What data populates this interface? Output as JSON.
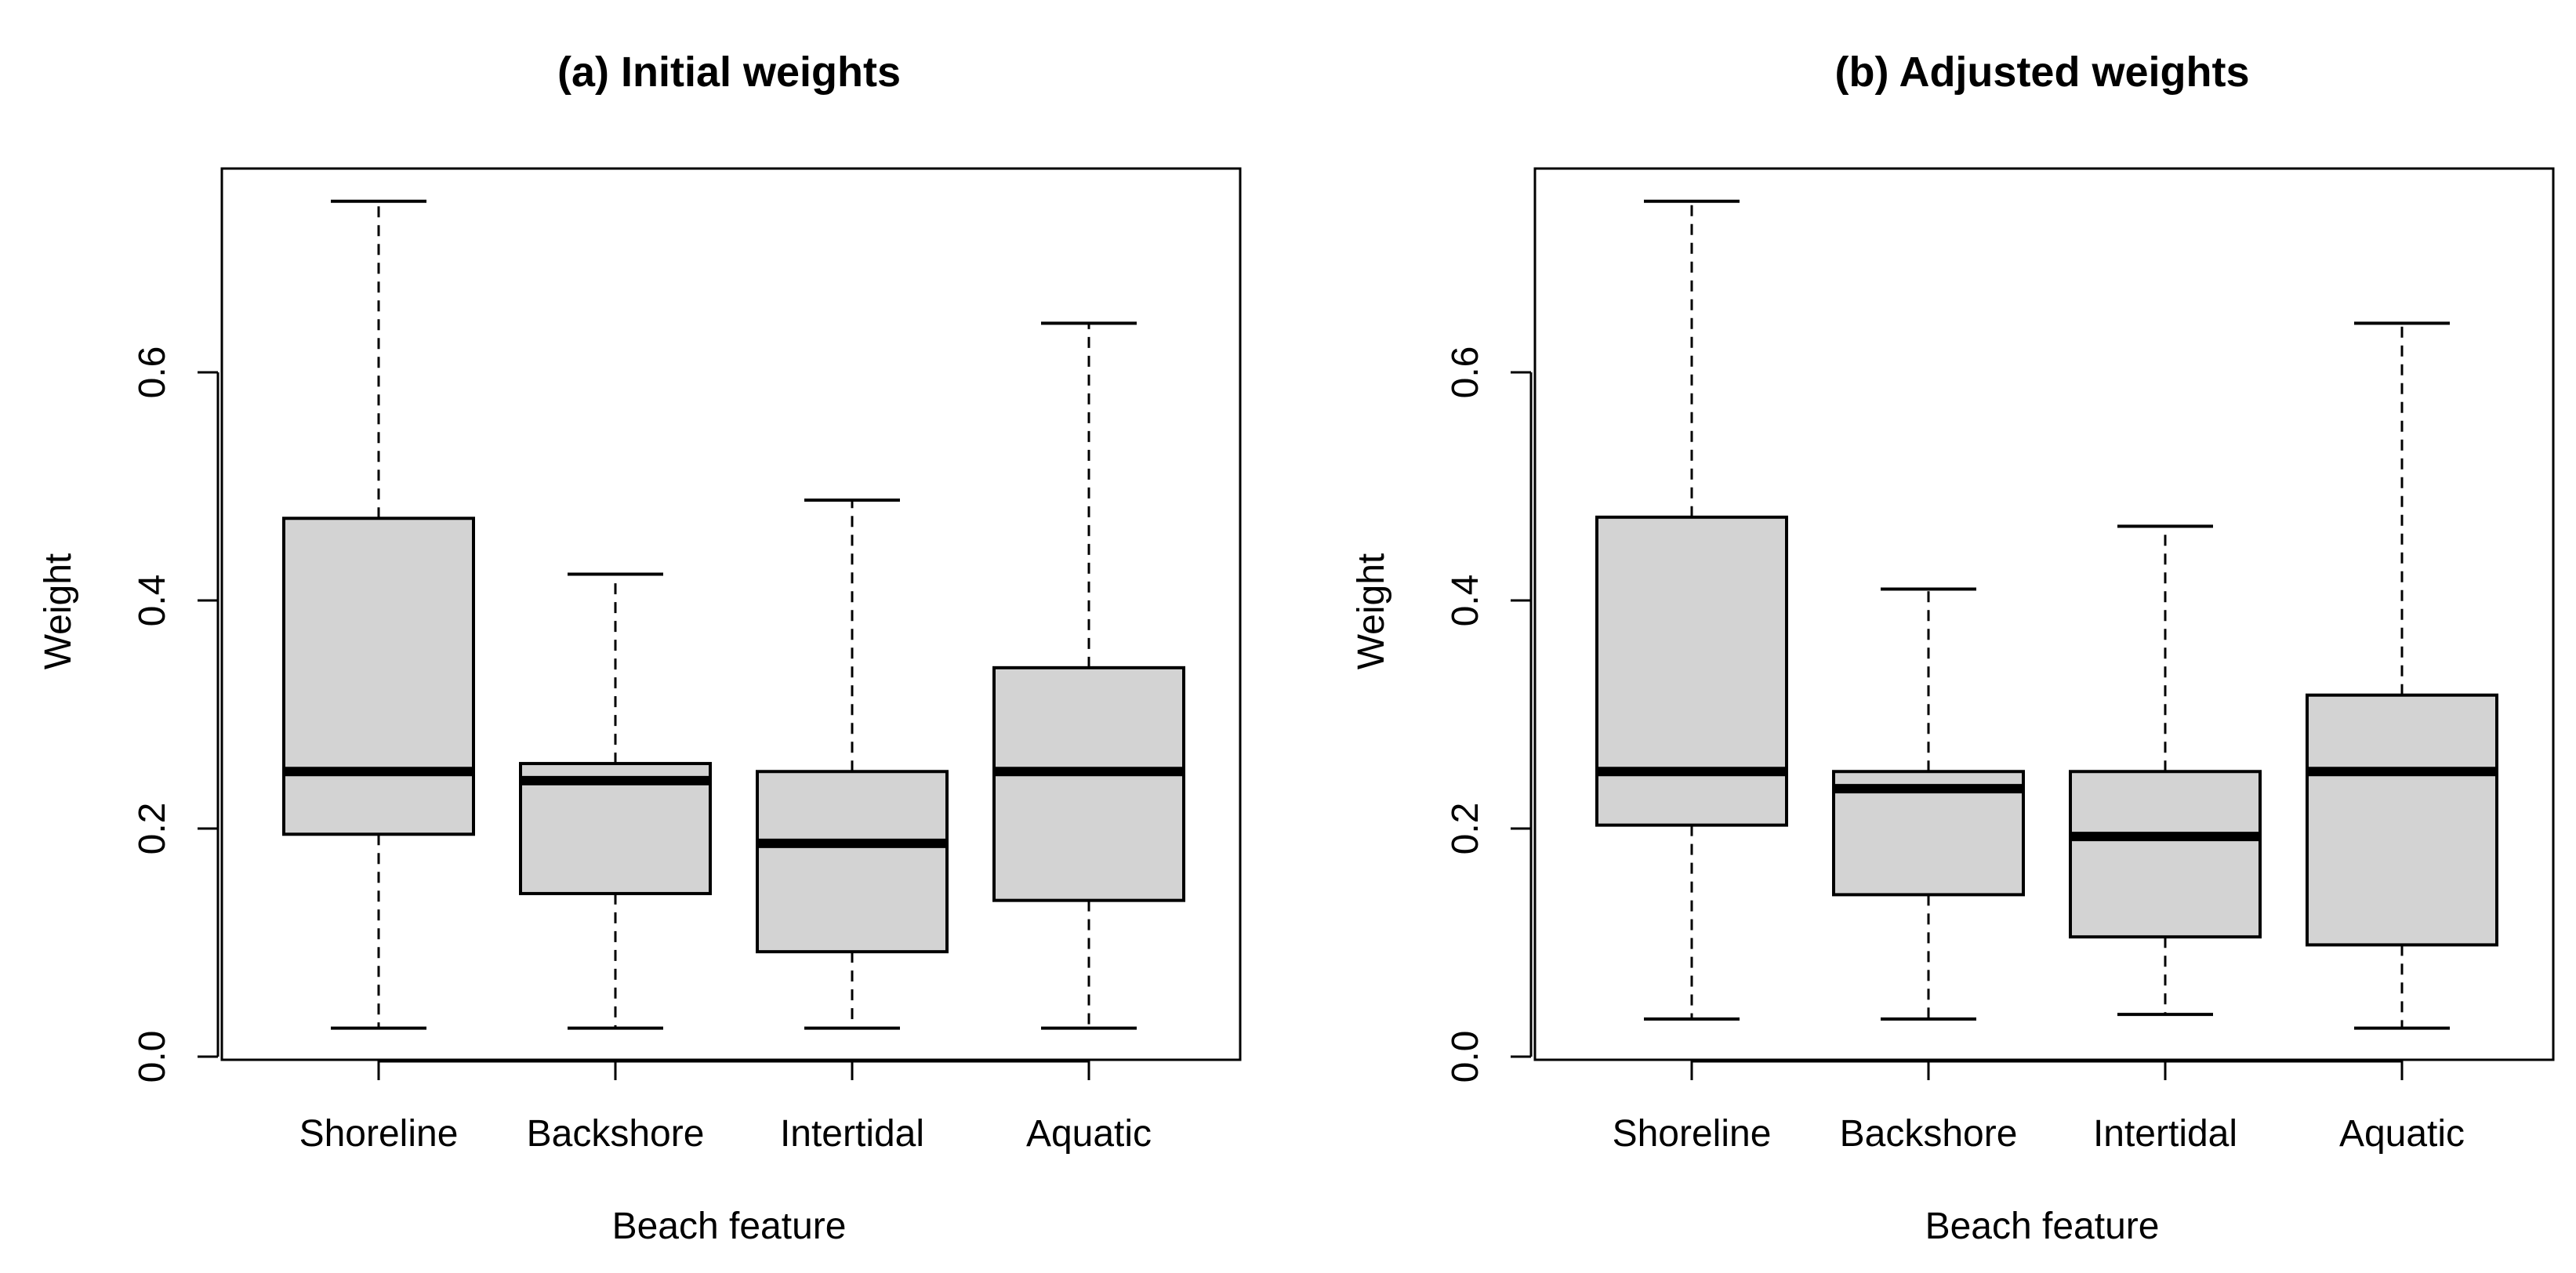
{
  "chart_data": [
    {
      "type": "boxplot",
      "title": "(a) Initial weights",
      "xlabel": "Beach feature",
      "ylabel": "Weight",
      "ylim": [
        0,
        0.78
      ],
      "yticks": [
        0.0,
        0.2,
        0.4,
        0.6
      ],
      "ytick_labels": [
        "0.0",
        "0.2",
        "0.4",
        "0.6"
      ],
      "categories": [
        "Shoreline",
        "Backshore",
        "Intertidal",
        "Aquatic"
      ],
      "boxes": [
        {
          "whisker_low": 0.025,
          "q1": 0.195,
          "median": 0.25,
          "q3": 0.472,
          "whisker_high": 0.75
        },
        {
          "whisker_low": 0.025,
          "q1": 0.143,
          "median": 0.242,
          "q3": 0.257,
          "whisker_high": 0.423
        },
        {
          "whisker_low": 0.025,
          "q1": 0.092,
          "median": 0.187,
          "q3": 0.25,
          "whisker_high": 0.488
        },
        {
          "whisker_low": 0.025,
          "q1": 0.137,
          "median": 0.25,
          "q3": 0.341,
          "whisker_high": 0.643
        }
      ],
      "grid": false
    },
    {
      "type": "boxplot",
      "title": "(b) Adjusted weights",
      "xlabel": "Beach feature",
      "ylabel": "Weight",
      "ylim": [
        0,
        0.78
      ],
      "yticks": [
        0.0,
        0.2,
        0.4,
        0.6
      ],
      "ytick_labels": [
        "0.0",
        "0.2",
        "0.4",
        "0.6"
      ],
      "categories": [
        "Shoreline",
        "Backshore",
        "Intertidal",
        "Aquatic"
      ],
      "boxes": [
        {
          "whisker_low": 0.033,
          "q1": 0.203,
          "median": 0.25,
          "q3": 0.473,
          "whisker_high": 0.75
        },
        {
          "whisker_low": 0.033,
          "q1": 0.142,
          "median": 0.235,
          "q3": 0.25,
          "whisker_high": 0.41
        },
        {
          "whisker_low": 0.037,
          "q1": 0.105,
          "median": 0.193,
          "q3": 0.25,
          "whisker_high": 0.465
        },
        {
          "whisker_low": 0.025,
          "q1": 0.098,
          "median": 0.25,
          "q3": 0.317,
          "whisker_high": 0.643
        }
      ],
      "grid": false
    }
  ],
  "colors": {
    "box_fill": "#d3d3d3",
    "stroke": "#000000",
    "background": "#ffffff"
  }
}
